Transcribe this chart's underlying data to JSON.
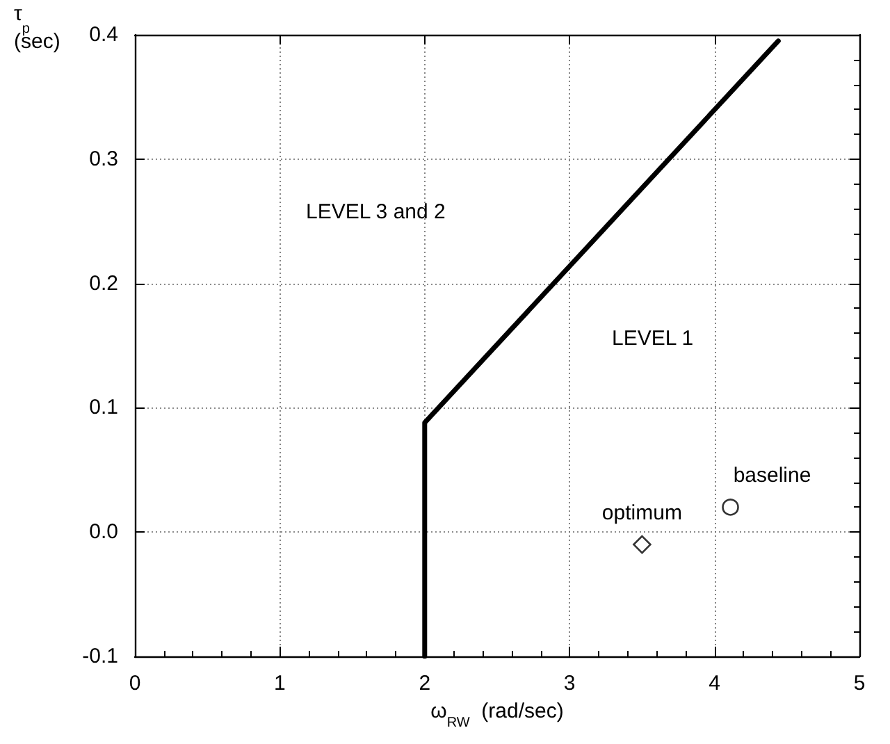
{
  "chart_data": {
    "type": "line",
    "xlabel": "ω$_{RW}$  (rad/sec)",
    "ylabel": "τ$_{p}$\n(sec)",
    "xlim": [
      0,
      5
    ],
    "xticks": [
      0,
      1,
      2,
      3,
      4,
      5
    ],
    "ylim": [
      -0.1,
      0.4
    ],
    "yticks": [
      -0.1,
      {
        "value": 0,
        "label": "0.0"
      },
      0.1,
      0.2,
      0.3,
      0.4
    ],
    "grid": true,
    "series": [
      {
        "color": "#000000",
        "marker": "none",
        "line_style": "solid",
        "x": [
          2,
          2,
          4.44
        ],
        "values": [
          -0.1,
          0.088,
          0.395
        ]
      },
      {
        "type": "scatter",
        "color": "#000000",
        "marker": "diamond",
        "x": [
          3.5
        ],
        "values": [
          -0.01
        ]
      },
      {
        "type": "scatter",
        "color": "#000000",
        "marker": "circle",
        "x": [
          4.11
        ],
        "values": [
          0.02
        ]
      }
    ],
    "annotations": [
      "LEVEL 3 and 2",
      "LEVEL 1",
      {
        "text": "optimum",
        "x": 3.5,
        "y": -0.01
      },
      {
        "text": "baseline",
        "x": 4.11,
        "y": 0.02
      }
    ]
  }
}
